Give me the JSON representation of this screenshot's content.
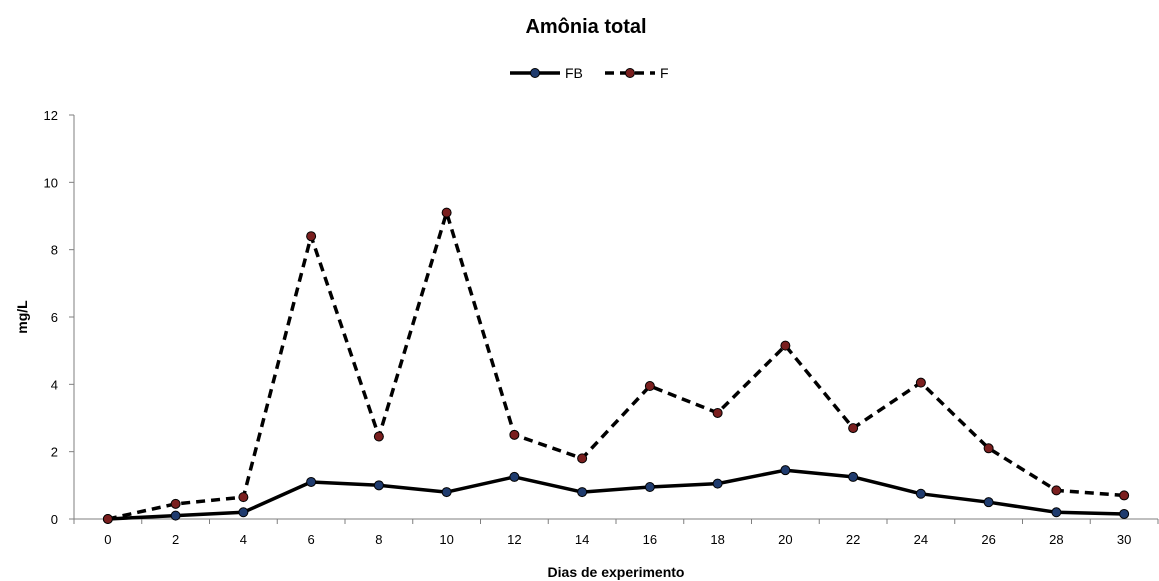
{
  "chart_data": {
    "type": "line",
    "title": "Amônia total",
    "xlabel": "Dias de experimento",
    "ylabel": "mg/L",
    "x": [
      0,
      2,
      4,
      6,
      8,
      10,
      12,
      14,
      16,
      18,
      20,
      22,
      24,
      26,
      28,
      30
    ],
    "xticks": [
      "0",
      "2",
      "4",
      "6",
      "8",
      "10",
      "12",
      "14",
      "16",
      "18",
      "20",
      "22",
      "24",
      "26",
      "28",
      "30"
    ],
    "yticks": [
      "0",
      "2",
      "4",
      "6",
      "8",
      "10",
      "12"
    ],
    "ylim": [
      0,
      12
    ],
    "grid": false,
    "legend_position": "top",
    "series": [
      {
        "name": "FB",
        "line_style": "solid",
        "line_color": "#000000",
        "marker_color": "#1f3b6e",
        "values": [
          0.0,
          0.1,
          0.2,
          1.1,
          1.0,
          0.8,
          1.25,
          0.8,
          0.95,
          1.05,
          1.45,
          1.25,
          0.75,
          0.5,
          0.2,
          0.15
        ]
      },
      {
        "name": "F",
        "line_style": "dashed",
        "line_color": "#000000",
        "marker_color": "#7a1f1f",
        "values": [
          0.0,
          0.45,
          0.65,
          8.4,
          2.45,
          9.1,
          2.5,
          1.8,
          3.95,
          3.15,
          5.15,
          2.7,
          4.05,
          2.1,
          0.85,
          0.7
        ]
      }
    ]
  }
}
